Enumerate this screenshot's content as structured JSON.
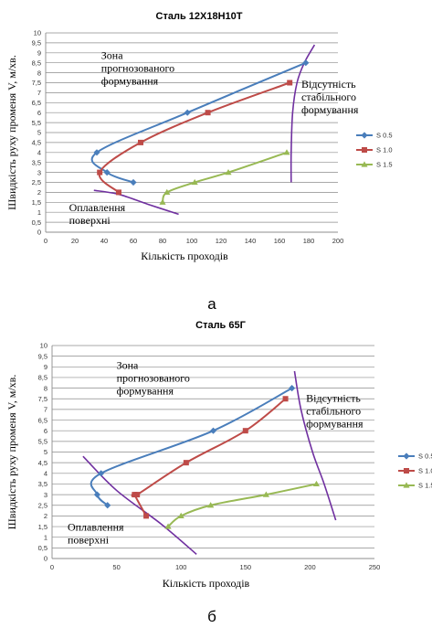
{
  "figure": {
    "subfigure_labels": [
      "а",
      "б"
    ]
  },
  "chart_data": [
    {
      "type": "line",
      "title": "Сталь 12Х18Н10Т",
      "xlabel": "Кількість проходів",
      "ylabel": "Швидкість руху променя V, м/хв.",
      "xlim": [
        0,
        200
      ],
      "ylim": [
        0,
        10
      ],
      "xticks": [
        0,
        20,
        40,
        60,
        80,
        100,
        120,
        140,
        160,
        180,
        200
      ],
      "yticks": [
        0,
        0.5,
        1,
        1.5,
        2,
        2.5,
        3,
        3.5,
        4,
        4.5,
        5,
        5.5,
        6,
        6.5,
        7,
        7.5,
        8,
        8.5,
        9,
        9.5,
        10
      ],
      "grid": "horizontal",
      "legend_position": "right",
      "series": [
        {
          "name": "S 0.5",
          "color": "#4a7ebb",
          "marker": "diamond",
          "x": [
            60,
            42,
            35,
            97,
            178
          ],
          "y": [
            2.5,
            3,
            4,
            6,
            8.5
          ]
        },
        {
          "name": "S 1.0",
          "color": "#be4b48",
          "marker": "square",
          "x": [
            50,
            37,
            65,
            111,
            167
          ],
          "y": [
            2,
            3,
            4.5,
            6,
            7.5
          ]
        },
        {
          "name": "S 1.5",
          "color": "#98b954",
          "marker": "triangle",
          "x": [
            80,
            83,
            102,
            125,
            165
          ],
          "y": [
            1.5,
            2,
            2.5,
            3,
            4
          ]
        }
      ],
      "boundaries": [
        {
          "label": "Відсутність стабільного формування",
          "color": "#7030a0",
          "x": [
            168,
            168,
            169,
            172,
            177,
            184
          ],
          "y": [
            2.5,
            4,
            6,
            7.5,
            8.5,
            9.4
          ]
        },
        {
          "label": "Оплавлення поверхні",
          "color": "#7030a0",
          "x": [
            33,
            50,
            70,
            91
          ],
          "y": [
            2.1,
            1.9,
            1.4,
            0.9
          ]
        }
      ],
      "annotations": [
        {
          "text": [
            "Зона",
            "прогнозованого",
            "формування"
          ],
          "at": [
            38,
            8.7
          ]
        },
        {
          "text": [
            "Відсутність",
            "стабільного",
            "формування"
          ],
          "at": [
            175,
            7.25
          ]
        },
        {
          "text": [
            "Оплавлення",
            "поверхні"
          ],
          "at": [
            16,
            1.05
          ]
        }
      ]
    },
    {
      "type": "line",
      "title": "Сталь 65Г",
      "xlabel": "Кількість проходів",
      "ylabel": "Швидкість руху променя V, м/хв.",
      "xlim": [
        0,
        250
      ],
      "ylim": [
        0,
        10
      ],
      "xticks": [
        0,
        50,
        100,
        150,
        200,
        250
      ],
      "yticks": [
        0,
        0.5,
        1,
        1.5,
        2,
        2.5,
        3,
        3.5,
        4,
        4.5,
        5,
        5.5,
        6,
        6.5,
        7,
        7.5,
        8,
        8.5,
        9,
        9.5,
        10
      ],
      "grid": "horizontal",
      "legend_position": "right",
      "series": [
        {
          "name": "S 0.5",
          "color": "#4a7ebb",
          "marker": "diamond",
          "x": [
            43,
            35,
            38,
            125,
            186
          ],
          "y": [
            2.5,
            3,
            4,
            6,
            8
          ]
        },
        {
          "name": "S 1.0",
          "color": "#be4b48",
          "marker": "square",
          "x": [
            73,
            64,
            66,
            104,
            150,
            181
          ],
          "y": [
            2,
            3,
            3,
            4.5,
            6,
            7.5
          ]
        },
        {
          "name": "S 1.5",
          "color": "#98b954",
          "marker": "triangle",
          "x": [
            90,
            100,
            123,
            166,
            205
          ],
          "y": [
            1.5,
            2,
            2.5,
            3,
            3.5
          ]
        }
      ],
      "boundaries": [
        {
          "label": "Відсутність стабільного формування",
          "color": "#7030a0",
          "x": [
            188,
            193,
            202,
            211,
            220
          ],
          "y": [
            8.8,
            7,
            5,
            3.5,
            1.8
          ]
        },
        {
          "label": "Оплавлення поверхні",
          "color": "#7030a0",
          "x": [
            24,
            50,
            85,
            112
          ],
          "y": [
            4.8,
            3.2,
            1.6,
            0.2
          ]
        }
      ],
      "annotations": [
        {
          "text": [
            "Зона",
            "прогнозованого",
            "формування"
          ],
          "at": [
            50,
            8.9
          ]
        },
        {
          "text": [
            "Відсутність",
            "стабільного",
            "формування"
          ],
          "at": [
            197,
            7.35
          ]
        },
        {
          "text": [
            "Оплавлення",
            "поверхні"
          ],
          "at": [
            12,
            1.3
          ]
        }
      ]
    }
  ]
}
